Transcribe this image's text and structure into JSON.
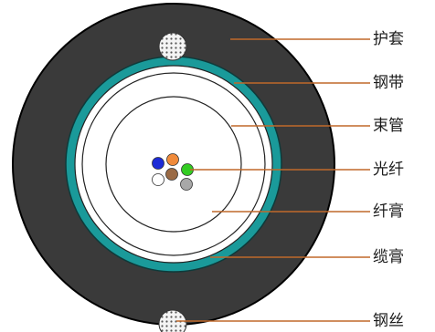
{
  "labels": {
    "sheath": "护套",
    "steel_tape": "钢带",
    "loose_tube": "束管",
    "fiber": "光纤",
    "fiber_gel": "纤膏",
    "cable_gel": "缆膏",
    "steel_wire": "钢丝"
  },
  "colors": {
    "sheath": "#3a3a3a",
    "steel_tape": "#1a9a9a",
    "leader_line": "#c0692a",
    "fiber_blue": "#1c2bd6",
    "fiber_orange": "#f08a3a",
    "fiber_green": "#33cc22",
    "fiber_brown": "#9a6a45",
    "fiber_white": "#ffffff",
    "fiber_gray": "#a8a8a8"
  },
  "icons": {
    "steel_wire": "dotted-circle-icon",
    "fiber": "colored-fiber-icon"
  }
}
